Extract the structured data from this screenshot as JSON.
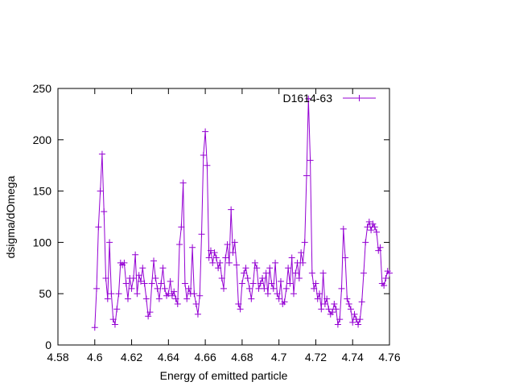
{
  "chart_data": {
    "type": "line",
    "xlabel": "Energy of emitted particle",
    "ylabel": "dsigma/dOmega",
    "xlim": [
      4.58,
      4.76
    ],
    "xticks": [
      4.58,
      4.6,
      4.62,
      4.64,
      4.66,
      4.68,
      4.7,
      4.72,
      4.74,
      4.76
    ],
    "ylim": [
      0,
      250
    ],
    "yticks": [
      0,
      50,
      100,
      150,
      200,
      250
    ],
    "legend": "top-right",
    "x": [
      4.6,
      4.601,
      4.602,
      4.603,
      4.604,
      4.605,
      4.606,
      4.607,
      4.608,
      4.609,
      4.61,
      4.611,
      4.612,
      4.613,
      4.614,
      4.615,
      4.616,
      4.617,
      4.618,
      4.619,
      4.62,
      4.621,
      4.622,
      4.623,
      4.624,
      4.625,
      4.626,
      4.627,
      4.628,
      4.629,
      4.63,
      4.631,
      4.632,
      4.633,
      4.634,
      4.635,
      4.636,
      4.637,
      4.638,
      4.639,
      4.64,
      4.641,
      4.642,
      4.643,
      4.644,
      4.645,
      4.646,
      4.647,
      4.648,
      4.649,
      4.65,
      4.651,
      4.652,
      4.653,
      4.654,
      4.655,
      4.656,
      4.657,
      4.658,
      4.659,
      4.66,
      4.661,
      4.662,
      4.663,
      4.664,
      4.665,
      4.666,
      4.667,
      4.668,
      4.669,
      4.67,
      4.671,
      4.672,
      4.673,
      4.674,
      4.675,
      4.676,
      4.677,
      4.678,
      4.679,
      4.68,
      4.681,
      4.682,
      4.683,
      4.684,
      4.685,
      4.686,
      4.687,
      4.688,
      4.689,
      4.69,
      4.691,
      4.692,
      4.693,
      4.694,
      4.695,
      4.696,
      4.697,
      4.698,
      4.699,
      4.7,
      4.701,
      4.702,
      4.703,
      4.704,
      4.705,
      4.706,
      4.707,
      4.708,
      4.709,
      4.71,
      4.711,
      4.712,
      4.713,
      4.714,
      4.715,
      4.716,
      4.717,
      4.718,
      4.719,
      4.72,
      4.721,
      4.722,
      4.723,
      4.724,
      4.725,
      4.726,
      4.727,
      4.728,
      4.729,
      4.73,
      4.731,
      4.732,
      4.733,
      4.734,
      4.735,
      4.736,
      4.737,
      4.738,
      4.739,
      4.74,
      4.741,
      4.742,
      4.743,
      4.744,
      4.745,
      4.746,
      4.747,
      4.748,
      4.749,
      4.75,
      4.751,
      4.752,
      4.753,
      4.754,
      4.755,
      4.756,
      4.757,
      4.758,
      4.759,
      4.76
    ],
    "series": [
      {
        "name": "D1614-63",
        "color": "#9400d3",
        "values": [
          17,
          55,
          115,
          150,
          186,
          130,
          65,
          45,
          100,
          50,
          25,
          20,
          35,
          50,
          80,
          78,
          80,
          60,
          45,
          65,
          55,
          65,
          88,
          50,
          68,
          62,
          75,
          60,
          45,
          28,
          32,
          60,
          82,
          65,
          55,
          45,
          60,
          75,
          55,
          48,
          50,
          62,
          48,
          52,
          45,
          40,
          98,
          115,
          158,
          60,
          45,
          55,
          50,
          95,
          50,
          40,
          30,
          48,
          108,
          185,
          208,
          175,
          85,
          92,
          80,
          90,
          85,
          75,
          80,
          65,
          55,
          85,
          98,
          80,
          132,
          90,
          100,
          78,
          40,
          35,
          60,
          70,
          75,
          65,
          55,
          45,
          60,
          80,
          75,
          55,
          60,
          65,
          55,
          70,
          50,
          75,
          60,
          55,
          80,
          50,
          45,
          62,
          40,
          42,
          55,
          75,
          60,
          85,
          50,
          70,
          80,
          65,
          90,
          80,
          100,
          165,
          240,
          180,
          70,
          55,
          60,
          45,
          50,
          35,
          70,
          40,
          45,
          35,
          30,
          32,
          40,
          35,
          20,
          25,
          55,
          113,
          85,
          45,
          40,
          35,
          22,
          30,
          25,
          20,
          25,
          42,
          70,
          100,
          115,
          120,
          112,
          118,
          115,
          110,
          92,
          95,
          60,
          58,
          65,
          72,
          70
        ]
      }
    ]
  }
}
